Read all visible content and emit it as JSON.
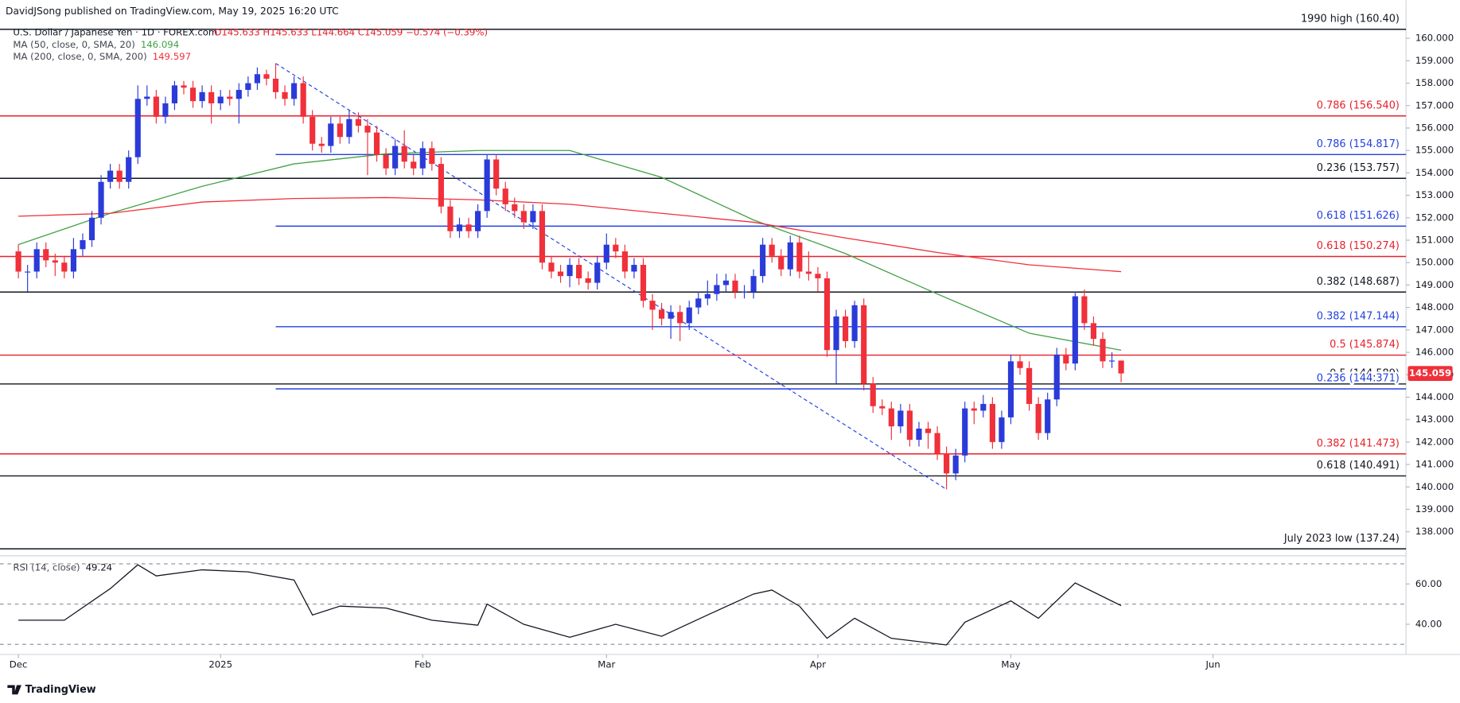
{
  "chart_data": {
    "type": "candlestick",
    "publisher": "DavidJSong published on TradingView.com, May 19, 2025 16:20 UTC",
    "title": "U.S. Dollar / Japanese Yen · 1D · FOREX.com",
    "quote": "O145.633  H145.633  L144.664  C145.059  −0.574 (−0.39%)",
    "footer": "TradingView",
    "up_color": "#2b3bd9",
    "down_color": "#f0303a",
    "open": [
      150.5,
      149.6,
      149.6,
      150.6,
      150.1,
      150.0,
      149.6,
      150.6,
      151.0,
      152.0,
      153.6,
      154.1,
      153.6,
      154.7,
      157.3,
      157.4,
      156.5,
      157.1,
      157.9,
      157.8,
      157.2,
      157.6,
      157.1,
      157.4,
      157.3,
      157.7,
      158.0,
      158.4,
      158.2,
      157.6,
      157.3,
      158.0,
      156.5,
      155.3,
      155.2,
      156.2,
      155.6,
      156.4,
      156.1,
      155.8,
      154.8,
      154.2,
      155.2,
      154.5,
      154.2,
      155.1,
      154.4,
      152.5,
      151.4,
      151.7,
      151.4,
      152.3,
      154.6,
      153.3,
      152.6,
      152.3,
      151.8,
      152.3,
      150.0,
      149.6,
      149.4,
      149.9,
      149.3,
      149.1,
      150.0,
      150.8,
      150.5,
      149.6,
      149.9,
      148.3,
      147.9,
      147.5,
      147.8,
      147.3,
      148.0,
      148.4,
      148.6,
      149.0,
      149.2,
      148.7,
      148.7,
      149.4,
      150.8,
      150.3,
      149.7,
      150.9,
      149.6,
      149.5,
      149.3,
      146.1,
      147.6,
      146.5,
      148.1,
      144.6,
      143.6,
      143.5,
      142.7,
      143.4,
      142.1,
      142.6,
      142.4,
      141.5,
      140.6,
      141.4,
      143.5,
      143.4,
      143.7,
      142.0,
      143.1,
      145.6,
      145.3,
      143.7,
      142.4,
      143.9,
      145.9,
      145.5,
      148.5,
      147.3,
      146.6,
      145.6,
      145.633
    ],
    "high": [
      150.8,
      149.9,
      150.9,
      150.9,
      150.4,
      150.3,
      151.1,
      151.3,
      152.3,
      153.9,
      154.4,
      154.4,
      155.0,
      157.9,
      157.9,
      157.7,
      157.4,
      158.1,
      158.1,
      158.1,
      157.9,
      157.9,
      157.7,
      157.7,
      158.0,
      158.3,
      158.7,
      158.6,
      158.88,
      157.9,
      158.3,
      158.3,
      156.8,
      155.6,
      156.5,
      156.5,
      156.8,
      156.7,
      156.4,
      156.1,
      155.1,
      155.5,
      155.9,
      154.8,
      155.4,
      155.4,
      154.7,
      152.8,
      152.0,
      152.0,
      152.6,
      154.8,
      154.8,
      153.6,
      152.9,
      152.6,
      152.6,
      152.6,
      150.3,
      149.9,
      150.2,
      150.2,
      149.6,
      150.3,
      151.3,
      151.1,
      150.8,
      150.2,
      150.2,
      148.6,
      148.2,
      148.1,
      148.1,
      148.3,
      148.7,
      149.2,
      149.5,
      149.5,
      149.5,
      149.0,
      149.7,
      151.1,
      151.1,
      150.6,
      151.2,
      151.2,
      150.5,
      149.8,
      149.6,
      147.9,
      147.9,
      148.3,
      148.4,
      144.9,
      143.9,
      143.8,
      143.7,
      143.7,
      142.9,
      142.9,
      142.7,
      141.8,
      141.7,
      143.8,
      143.8,
      144.1,
      144.0,
      143.4,
      145.9,
      145.9,
      145.6,
      144.0,
      144.2,
      146.2,
      146.2,
      148.7,
      148.8,
      147.6,
      146.9,
      146.0,
      145.633
    ],
    "low": [
      149.3,
      148.7,
      149.3,
      149.8,
      149.4,
      149.3,
      149.3,
      150.3,
      150.7,
      151.7,
      153.3,
      153.3,
      153.3,
      154.4,
      157.0,
      156.2,
      156.2,
      156.8,
      157.5,
      156.9,
      156.9,
      156.2,
      156.8,
      157.0,
      156.2,
      157.4,
      157.7,
      157.9,
      157.3,
      157.0,
      157.0,
      156.2,
      155.0,
      154.9,
      154.9,
      155.3,
      155.3,
      155.8,
      153.9,
      154.5,
      153.9,
      153.9,
      154.2,
      153.9,
      153.9,
      154.1,
      152.2,
      151.1,
      151.1,
      151.1,
      151.1,
      152.0,
      153.0,
      152.3,
      152.0,
      151.5,
      151.5,
      149.7,
      149.3,
      149.1,
      148.9,
      149.0,
      148.8,
      148.8,
      149.7,
      150.2,
      149.3,
      149.3,
      148.0,
      147.0,
      147.2,
      146.6,
      146.5,
      147.0,
      147.7,
      148.1,
      148.3,
      148.7,
      148.4,
      148.4,
      148.4,
      149.1,
      150.0,
      149.4,
      149.4,
      149.3,
      149.2,
      148.7,
      145.8,
      144.6,
      146.2,
      146.2,
      144.3,
      143.3,
      143.2,
      142.1,
      142.4,
      141.8,
      141.8,
      141.7,
      141.2,
      139.89,
      140.3,
      141.1,
      142.8,
      143.1,
      141.7,
      141.7,
      142.8,
      145.0,
      143.4,
      142.1,
      142.1,
      143.6,
      145.2,
      145.2,
      147.0,
      146.3,
      145.3,
      145.3,
      144.664
    ],
    "close": [
      149.6,
      149.6,
      150.6,
      150.1,
      150.0,
      149.6,
      150.6,
      151.0,
      152.0,
      153.6,
      154.1,
      153.6,
      154.7,
      157.3,
      157.4,
      156.5,
      157.1,
      157.9,
      157.8,
      157.2,
      157.6,
      157.1,
      157.4,
      157.3,
      157.7,
      158.0,
      158.4,
      158.2,
      157.6,
      157.3,
      158.0,
      156.5,
      155.3,
      155.2,
      156.2,
      155.6,
      156.4,
      156.1,
      155.8,
      154.8,
      154.2,
      155.2,
      154.5,
      154.2,
      155.1,
      154.4,
      152.5,
      151.4,
      151.7,
      151.4,
      152.3,
      154.6,
      153.3,
      152.6,
      152.3,
      151.8,
      152.3,
      150.0,
      149.6,
      149.4,
      149.9,
      149.3,
      149.1,
      150.0,
      150.8,
      150.5,
      149.6,
      149.9,
      148.3,
      147.9,
      147.5,
      147.8,
      147.3,
      148.0,
      148.4,
      148.6,
      149.0,
      149.2,
      148.7,
      148.7,
      149.4,
      150.8,
      150.3,
      149.7,
      150.9,
      149.6,
      149.5,
      149.3,
      146.1,
      147.6,
      146.5,
      148.1,
      144.6,
      143.6,
      143.5,
      142.7,
      143.4,
      142.1,
      142.6,
      142.4,
      141.5,
      140.6,
      141.4,
      143.5,
      143.4,
      143.7,
      142.0,
      143.1,
      145.6,
      145.3,
      143.7,
      142.4,
      143.9,
      145.9,
      145.5,
      148.5,
      147.3,
      146.6,
      145.6,
      145.633,
      145.059
    ],
    "xlim": [
      -2,
      151
    ],
    "xticks": [
      {
        "value": 0,
        "label": "Dec"
      },
      {
        "value": 22,
        "label": "2025"
      },
      {
        "value": 44,
        "label": "Feb"
      },
      {
        "value": 64,
        "label": "Mar"
      },
      {
        "value": 87,
        "label": "Apr"
      },
      {
        "value": 108,
        "label": "May"
      },
      {
        "value": 130,
        "label": "Jun"
      }
    ],
    "ylim": [
      136.93,
      160.87
    ],
    "yticks": [
      {
        "value": 138,
        "label": "138.000"
      },
      {
        "value": 139,
        "label": "139.000"
      },
      {
        "value": 140,
        "label": "140.000"
      },
      {
        "value": 141,
        "label": "141.000"
      },
      {
        "value": 142,
        "label": "142.000"
      },
      {
        "value": 143,
        "label": "143.000"
      },
      {
        "value": 144,
        "label": "144.000"
      },
      {
        "value": 145,
        "label": "145.000"
      },
      {
        "value": 146,
        "label": "146.000"
      },
      {
        "value": 147,
        "label": "147.000"
      },
      {
        "value": 148,
        "label": "148.000"
      },
      {
        "value": 149,
        "label": "149.000"
      },
      {
        "value": 150,
        "label": "150.000"
      },
      {
        "value": 151,
        "label": "151.000"
      },
      {
        "value": 152,
        "label": "152.000"
      },
      {
        "value": 153,
        "label": "153.000"
      },
      {
        "value": 154,
        "label": "154.000"
      },
      {
        "value": 155,
        "label": "155.000"
      },
      {
        "value": 156,
        "label": "156.000"
      },
      {
        "value": 157,
        "label": "157.000"
      },
      {
        "value": 158,
        "label": "158.000"
      },
      {
        "value": 159,
        "label": "159.000"
      },
      {
        "value": 160,
        "label": "160.000"
      }
    ],
    "series": [
      {
        "name": "MA (50, close, 0, SMA, 20)",
        "color": "#43a047",
        "x": [
          0,
          10,
          20,
          30,
          40,
          50,
          60,
          70,
          80,
          90,
          100,
          110,
          120
        ],
        "values": [
          150.8,
          152.2,
          153.4,
          154.4,
          154.85,
          155.0,
          155.0,
          153.8,
          151.9,
          150.4,
          148.6,
          146.85,
          146.094
        ]
      },
      {
        "name": "MA (200, close, 0, SMA, 200)",
        "color": "#f0303a",
        "x": [
          0,
          10,
          20,
          30,
          40,
          50,
          60,
          70,
          80,
          90,
          100,
          110,
          120
        ],
        "values": [
          152.07,
          152.2,
          152.7,
          152.86,
          152.9,
          152.8,
          152.6,
          152.2,
          151.8,
          151.1,
          150.45,
          149.9,
          149.597
        ]
      }
    ],
    "trendline": {
      "x": [
        28,
        101
      ],
      "values": [
        158.88,
        139.89
      ],
      "color": "#2341e0"
    },
    "levels": [
      {
        "label": "1990 high (160.40)",
        "value": 160.4,
        "color": "#131722"
      },
      {
        "label": "0.786 (156.540)",
        "value": 156.54,
        "color": "#e8202a"
      },
      {
        "label": "0.786 (154.817)",
        "value": 154.817,
        "color": "#2341e0"
      },
      {
        "label": "0.236 (153.757)",
        "value": 153.757,
        "color": "#131722"
      },
      {
        "label": "0.618 (151.626)",
        "value": 151.626,
        "color": "#2341e0"
      },
      {
        "label": "0.618 (150.274)",
        "value": 150.274,
        "color": "#e8202a"
      },
      {
        "label": "0.382 (148.687)",
        "value": 148.687,
        "color": "#131722"
      },
      {
        "label": "0.382 (147.144)",
        "value": 147.144,
        "color": "#2341e0"
      },
      {
        "label": "0.5 (145.874)",
        "value": 145.874,
        "color": "#e8202a"
      },
      {
        "label": "0.5 (144.589)",
        "value": 144.589,
        "color": "#131722"
      },
      {
        "label": "0.236 (144.371)",
        "value": 144.371,
        "color": "#2341e0"
      },
      {
        "label": "0.382 (141.473)",
        "value": 141.473,
        "color": "#e8202a"
      },
      {
        "label": "0.618 (140.491)",
        "value": 140.491,
        "color": "#131722"
      },
      {
        "label": "July 2023 low (137.24)",
        "value": 137.24,
        "color": "#131722"
      }
    ],
    "rsi": {
      "name": "RSI (14, close)",
      "color": "#131722",
      "x": [
        0,
        5,
        10,
        13,
        15,
        20,
        25,
        30,
        32,
        35,
        40,
        45,
        50,
        51,
        55,
        60,
        65,
        70,
        75,
        80,
        82,
        85,
        88,
        91,
        95,
        101,
        103,
        108,
        111,
        115,
        120
      ],
      "values": [
        42,
        42,
        57.7,
        69.5,
        64,
        67,
        66,
        62,
        44.6,
        49,
        48,
        42,
        39.5,
        50,
        40,
        33.5,
        40,
        34,
        44.6,
        55,
        57,
        49,
        33,
        43,
        33,
        29.7,
        41,
        51.6,
        43,
        60.5,
        49.24
      ],
      "ylim": [
        25,
        74
      ],
      "yticks": [
        {
          "value": 40,
          "label": "40.00"
        },
        {
          "value": 60,
          "label": "60.00"
        }
      ],
      "bands": [
        70,
        50,
        30
      ]
    }
  }
}
